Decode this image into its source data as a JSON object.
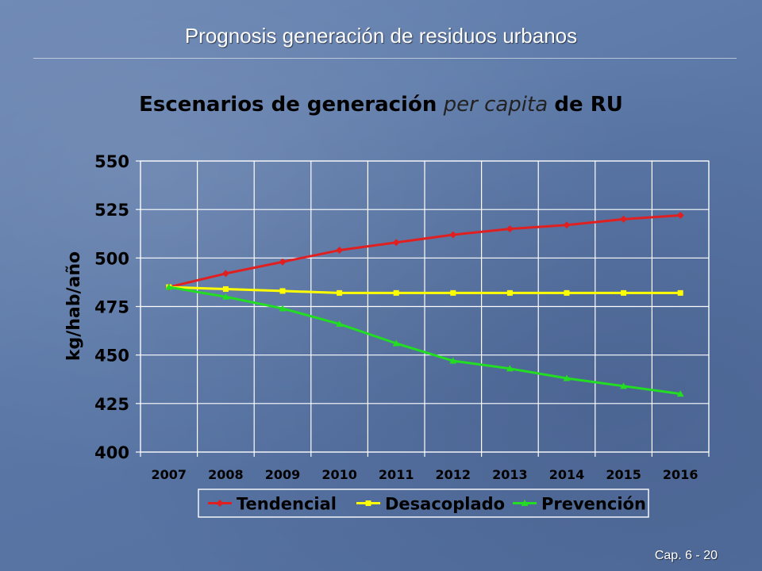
{
  "slide": {
    "title": "Prognosis generación de residuos urbanos",
    "footer": "Cap. 6 - 20"
  },
  "chart_data": {
    "type": "line",
    "title_parts": [
      "Escenarios de generación",
      "per capita",
      "de RU"
    ],
    "xlabel": "",
    "ylabel": "kg/hab/año",
    "categories": [
      "2007",
      "2008",
      "2009",
      "2010",
      "2011",
      "2012",
      "2013",
      "2014",
      "2015",
      "2016"
    ],
    "ylim": [
      400,
      550
    ],
    "yticks": [
      400,
      425,
      450,
      475,
      500,
      525,
      550
    ],
    "grid": true,
    "legend_position": "bottom",
    "series": [
      {
        "name": "Tendencial",
        "color": "#e02020",
        "marker": "diamond",
        "values": [
          485,
          492,
          498,
          504,
          508,
          512,
          515,
          517,
          520,
          522
        ]
      },
      {
        "name": "Desacoplado",
        "color": "#ffff00",
        "marker": "square",
        "values": [
          485,
          484,
          483,
          482,
          482,
          482,
          482,
          482,
          482,
          482
        ]
      },
      {
        "name": "Prevención",
        "color": "#22dd22",
        "marker": "triangle",
        "values": [
          485,
          480,
          474,
          466,
          456,
          447,
          443,
          438,
          434,
          430
        ]
      }
    ]
  }
}
